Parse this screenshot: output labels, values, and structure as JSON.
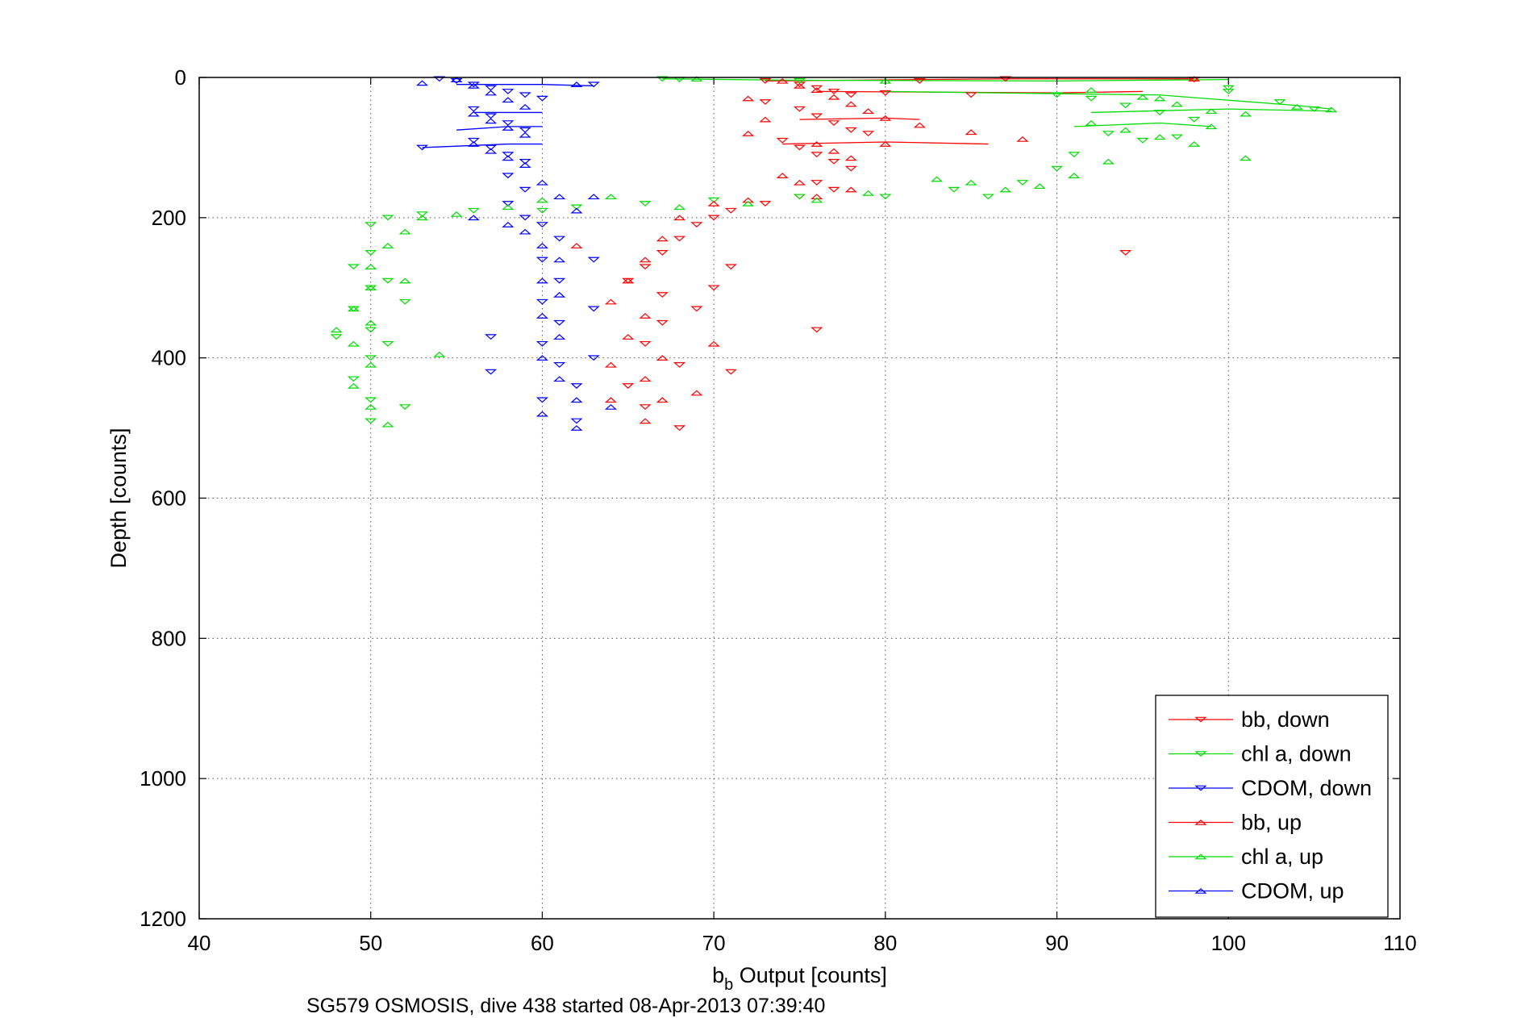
{
  "chart_data": {
    "type": "scatter",
    "title": "",
    "xlabel_main": "b",
    "xlabel_sub": "b",
    "xlabel_rest": " Output [counts]",
    "ylabel": "Depth [counts]",
    "caption": "SG579 OSMOSIS, dive 438 started 08-Apr-2013 07:39:40",
    "xlim": [
      40,
      110
    ],
    "ylim": [
      0,
      1200
    ],
    "y_reversed": true,
    "grid": true,
    "xticks": [
      "40",
      "50",
      "60",
      "70",
      "80",
      "90",
      "100",
      "110"
    ],
    "yticks": [
      "0",
      "200",
      "400",
      "600",
      "800",
      "1000",
      "1200"
    ],
    "legend_position": "bottom-right",
    "series": [
      {
        "name": "bb, down",
        "color": "#ff0000",
        "marker": "triangle-down",
        "points": [
          [
            73,
            5
          ],
          [
            75,
            10
          ],
          [
            76,
            15
          ],
          [
            77,
            20
          ],
          [
            78,
            25
          ],
          [
            80,
            22
          ],
          [
            85,
            25
          ],
          [
            73,
            35
          ],
          [
            75,
            45
          ],
          [
            76,
            55
          ],
          [
            77,
            65
          ],
          [
            78,
            75
          ],
          [
            79,
            80
          ],
          [
            74,
            90
          ],
          [
            75,
            100
          ],
          [
            76,
            110
          ],
          [
            77,
            120
          ],
          [
            78,
            130
          ],
          [
            76,
            150
          ],
          [
            77,
            160
          ],
          [
            75,
            170
          ],
          [
            73,
            180
          ],
          [
            71,
            190
          ],
          [
            70,
            200
          ],
          [
            69,
            210
          ],
          [
            68,
            230
          ],
          [
            67,
            250
          ],
          [
            66,
            270
          ],
          [
            65,
            290
          ],
          [
            67,
            310
          ],
          [
            69,
            330
          ],
          [
            71,
            270
          ],
          [
            70,
            300
          ],
          [
            67,
            350
          ],
          [
            66,
            380
          ],
          [
            68,
            410
          ],
          [
            65,
            440
          ],
          [
            66,
            470
          ],
          [
            68,
            500
          ],
          [
            94,
            250
          ],
          [
            76,
            360
          ],
          [
            71,
            420
          ],
          [
            82,
            5
          ],
          [
            87,
            2
          ],
          [
            98,
            3
          ]
        ]
      },
      {
        "name": "chl a, down",
        "color": "#00dd00",
        "marker": "triangle-down",
        "points": [
          [
            67,
            2
          ],
          [
            68,
            3
          ],
          [
            75,
            5
          ],
          [
            90,
            25
          ],
          [
            92,
            30
          ],
          [
            94,
            40
          ],
          [
            96,
            50
          ],
          [
            98,
            60
          ],
          [
            100,
            20
          ],
          [
            103,
            35
          ],
          [
            105,
            45
          ],
          [
            93,
            80
          ],
          [
            95,
            90
          ],
          [
            91,
            110
          ],
          [
            90,
            130
          ],
          [
            88,
            150
          ],
          [
            86,
            170
          ],
          [
            84,
            160
          ],
          [
            80,
            170
          ],
          [
            75,
            170
          ],
          [
            70,
            175
          ],
          [
            66,
            180
          ],
          [
            62,
            185
          ],
          [
            60,
            190
          ],
          [
            56,
            190
          ],
          [
            53,
            195
          ],
          [
            51,
            200
          ],
          [
            50,
            210
          ],
          [
            50,
            250
          ],
          [
            49,
            270
          ],
          [
            50,
            300
          ],
          [
            49,
            330
          ],
          [
            50,
            360
          ],
          [
            50,
            400
          ],
          [
            49,
            430
          ],
          [
            50,
            460
          ],
          [
            50,
            490
          ],
          [
            51,
            380
          ],
          [
            52,
            320
          ],
          [
            51,
            290
          ],
          [
            48,
            370
          ],
          [
            52,
            470
          ],
          [
            97,
            85
          ],
          [
            100,
            15
          ]
        ]
      },
      {
        "name": "CDOM, down",
        "color": "#0000ff",
        "marker": "triangle-down",
        "points": [
          [
            54,
            2
          ],
          [
            55,
            5
          ],
          [
            56,
            10
          ],
          [
            57,
            15
          ],
          [
            58,
            20
          ],
          [
            59,
            25
          ],
          [
            60,
            30
          ],
          [
            56,
            45
          ],
          [
            57,
            55
          ],
          [
            58,
            65
          ],
          [
            59,
            75
          ],
          [
            56,
            90
          ],
          [
            57,
            100
          ],
          [
            58,
            110
          ],
          [
            59,
            120
          ],
          [
            58,
            140
          ],
          [
            59,
            160
          ],
          [
            58,
            180
          ],
          [
            59,
            200
          ],
          [
            60,
            210
          ],
          [
            61,
            230
          ],
          [
            60,
            260
          ],
          [
            61,
            290
          ],
          [
            60,
            320
          ],
          [
            61,
            350
          ],
          [
            60,
            380
          ],
          [
            61,
            410
          ],
          [
            62,
            440
          ],
          [
            60,
            460
          ],
          [
            62,
            490
          ],
          [
            57,
            370
          ],
          [
            57,
            420
          ],
          [
            63,
            260
          ],
          [
            63,
            330
          ],
          [
            63,
            400
          ],
          [
            53,
            100
          ],
          [
            63,
            10
          ]
        ]
      },
      {
        "name": "bb, up",
        "color": "#ff0000",
        "marker": "triangle-up",
        "points": [
          [
            74,
            5
          ],
          [
            75,
            12
          ],
          [
            76,
            18
          ],
          [
            77,
            28
          ],
          [
            78,
            38
          ],
          [
            79,
            48
          ],
          [
            80,
            58
          ],
          [
            82,
            68
          ],
          [
            85,
            78
          ],
          [
            88,
            88
          ],
          [
            76,
            95
          ],
          [
            77,
            105
          ],
          [
            78,
            115
          ],
          [
            72,
            30
          ],
          [
            73,
            60
          ],
          [
            72,
            80
          ],
          [
            74,
            140
          ],
          [
            75,
            150
          ],
          [
            76,
            170
          ],
          [
            78,
            160
          ],
          [
            72,
            175
          ],
          [
            70,
            180
          ],
          [
            68,
            200
          ],
          [
            67,
            230
          ],
          [
            66,
            260
          ],
          [
            65,
            290
          ],
          [
            64,
            320
          ],
          [
            66,
            340
          ],
          [
            65,
            370
          ],
          [
            67,
            400
          ],
          [
            66,
            430
          ],
          [
            67,
            460
          ],
          [
            66,
            490
          ],
          [
            69,
            450
          ],
          [
            70,
            380
          ],
          [
            62,
            240
          ],
          [
            64,
            410
          ],
          [
            64,
            460
          ],
          [
            80,
            95
          ],
          [
            98,
            2
          ]
        ]
      },
      {
        "name": "chl a, up",
        "color": "#00dd00",
        "marker": "triangle-up",
        "points": [
          [
            69,
            2
          ],
          [
            80,
            5
          ],
          [
            92,
            18
          ],
          [
            95,
            28
          ],
          [
            97,
            38
          ],
          [
            99,
            48
          ],
          [
            101,
            52
          ],
          [
            104,
            42
          ],
          [
            106,
            46
          ],
          [
            92,
            65
          ],
          [
            94,
            75
          ],
          [
            96,
            85
          ],
          [
            98,
            95
          ],
          [
            101,
            115
          ],
          [
            93,
            120
          ],
          [
            91,
            140
          ],
          [
            89,
            155
          ],
          [
            87,
            160
          ],
          [
            85,
            150
          ],
          [
            83,
            145
          ],
          [
            79,
            165
          ],
          [
            76,
            175
          ],
          [
            72,
            180
          ],
          [
            68,
            185
          ],
          [
            64,
            170
          ],
          [
            60,
            175
          ],
          [
            58,
            185
          ],
          [
            55,
            195
          ],
          [
            53,
            200
          ],
          [
            52,
            220
          ],
          [
            51,
            240
          ],
          [
            50,
            270
          ],
          [
            50,
            300
          ],
          [
            49,
            330
          ],
          [
            50,
            350
          ],
          [
            49,
            380
          ],
          [
            50,
            410
          ],
          [
            49,
            440
          ],
          [
            50,
            470
          ],
          [
            51,
            495
          ],
          [
            54,
            395
          ],
          [
            52,
            290
          ],
          [
            48,
            360
          ],
          [
            96,
            30
          ],
          [
            99,
            70
          ]
        ]
      },
      {
        "name": "CDOM, up",
        "color": "#0000ff",
        "marker": "triangle-up",
        "points": [
          [
            53,
            8
          ],
          [
            55,
            3
          ],
          [
            56,
            12
          ],
          [
            57,
            22
          ],
          [
            58,
            32
          ],
          [
            59,
            42
          ],
          [
            56,
            52
          ],
          [
            57,
            62
          ],
          [
            58,
            72
          ],
          [
            59,
            82
          ],
          [
            56,
            95
          ],
          [
            57,
            105
          ],
          [
            58,
            115
          ],
          [
            59,
            125
          ],
          [
            60,
            150
          ],
          [
            61,
            170
          ],
          [
            62,
            190
          ],
          [
            59,
            220
          ],
          [
            60,
            240
          ],
          [
            61,
            260
          ],
          [
            60,
            290
          ],
          [
            61,
            310
          ],
          [
            60,
            340
          ],
          [
            61,
            370
          ],
          [
            60,
            400
          ],
          [
            61,
            430
          ],
          [
            62,
            460
          ],
          [
            60,
            480
          ],
          [
            62,
            500
          ],
          [
            62,
            10
          ],
          [
            64,
            470
          ],
          [
            63,
            170
          ],
          [
            56,
            200
          ],
          [
            58,
            210
          ]
        ]
      }
    ],
    "lines": [
      {
        "series": "CDOM, down",
        "points": [
          [
            55,
            10
          ],
          [
            60,
            10
          ],
          [
            63,
            12
          ]
        ]
      },
      {
        "series": "CDOM, up",
        "points": [
          [
            53,
            100
          ],
          [
            58,
            95
          ],
          [
            60,
            95
          ]
        ]
      },
      {
        "series": "CDOM, down",
        "points": [
          [
            55,
            75
          ],
          [
            58,
            70
          ],
          [
            60,
            70
          ]
        ]
      },
      {
        "series": "CDOM, up",
        "points": [
          [
            56,
            50
          ],
          [
            60,
            50
          ]
        ]
      },
      {
        "series": "bb, down",
        "points": [
          [
            73,
            5
          ],
          [
            87,
            2
          ],
          [
            98,
            2
          ]
        ]
      },
      {
        "series": "bb, up",
        "points": [
          [
            76,
            20
          ],
          [
            90,
            22
          ],
          [
            95,
            20
          ]
        ]
      },
      {
        "series": "bb, down",
        "points": [
          [
            74,
            95
          ],
          [
            80,
            92
          ],
          [
            86,
            95
          ]
        ]
      },
      {
        "series": "bb, up",
        "points": [
          [
            75,
            60
          ],
          [
            80,
            58
          ],
          [
            82,
            60
          ]
        ]
      },
      {
        "series": "chl a, down",
        "points": [
          [
            67,
            2
          ],
          [
            75,
            4
          ],
          [
            90,
            5
          ],
          [
            100,
            3
          ]
        ]
      },
      {
        "series": "chl a, up",
        "points": [
          [
            80,
            20
          ],
          [
            96,
            25
          ],
          [
            104,
            40
          ],
          [
            106,
            45
          ]
        ]
      },
      {
        "series": "chl a, down",
        "points": [
          [
            92,
            50
          ],
          [
            100,
            45
          ],
          [
            106,
            48
          ]
        ]
      },
      {
        "series": "chl a, up",
        "points": [
          [
            91,
            70
          ],
          [
            96,
            65
          ],
          [
            99,
            70
          ]
        ]
      }
    ]
  }
}
